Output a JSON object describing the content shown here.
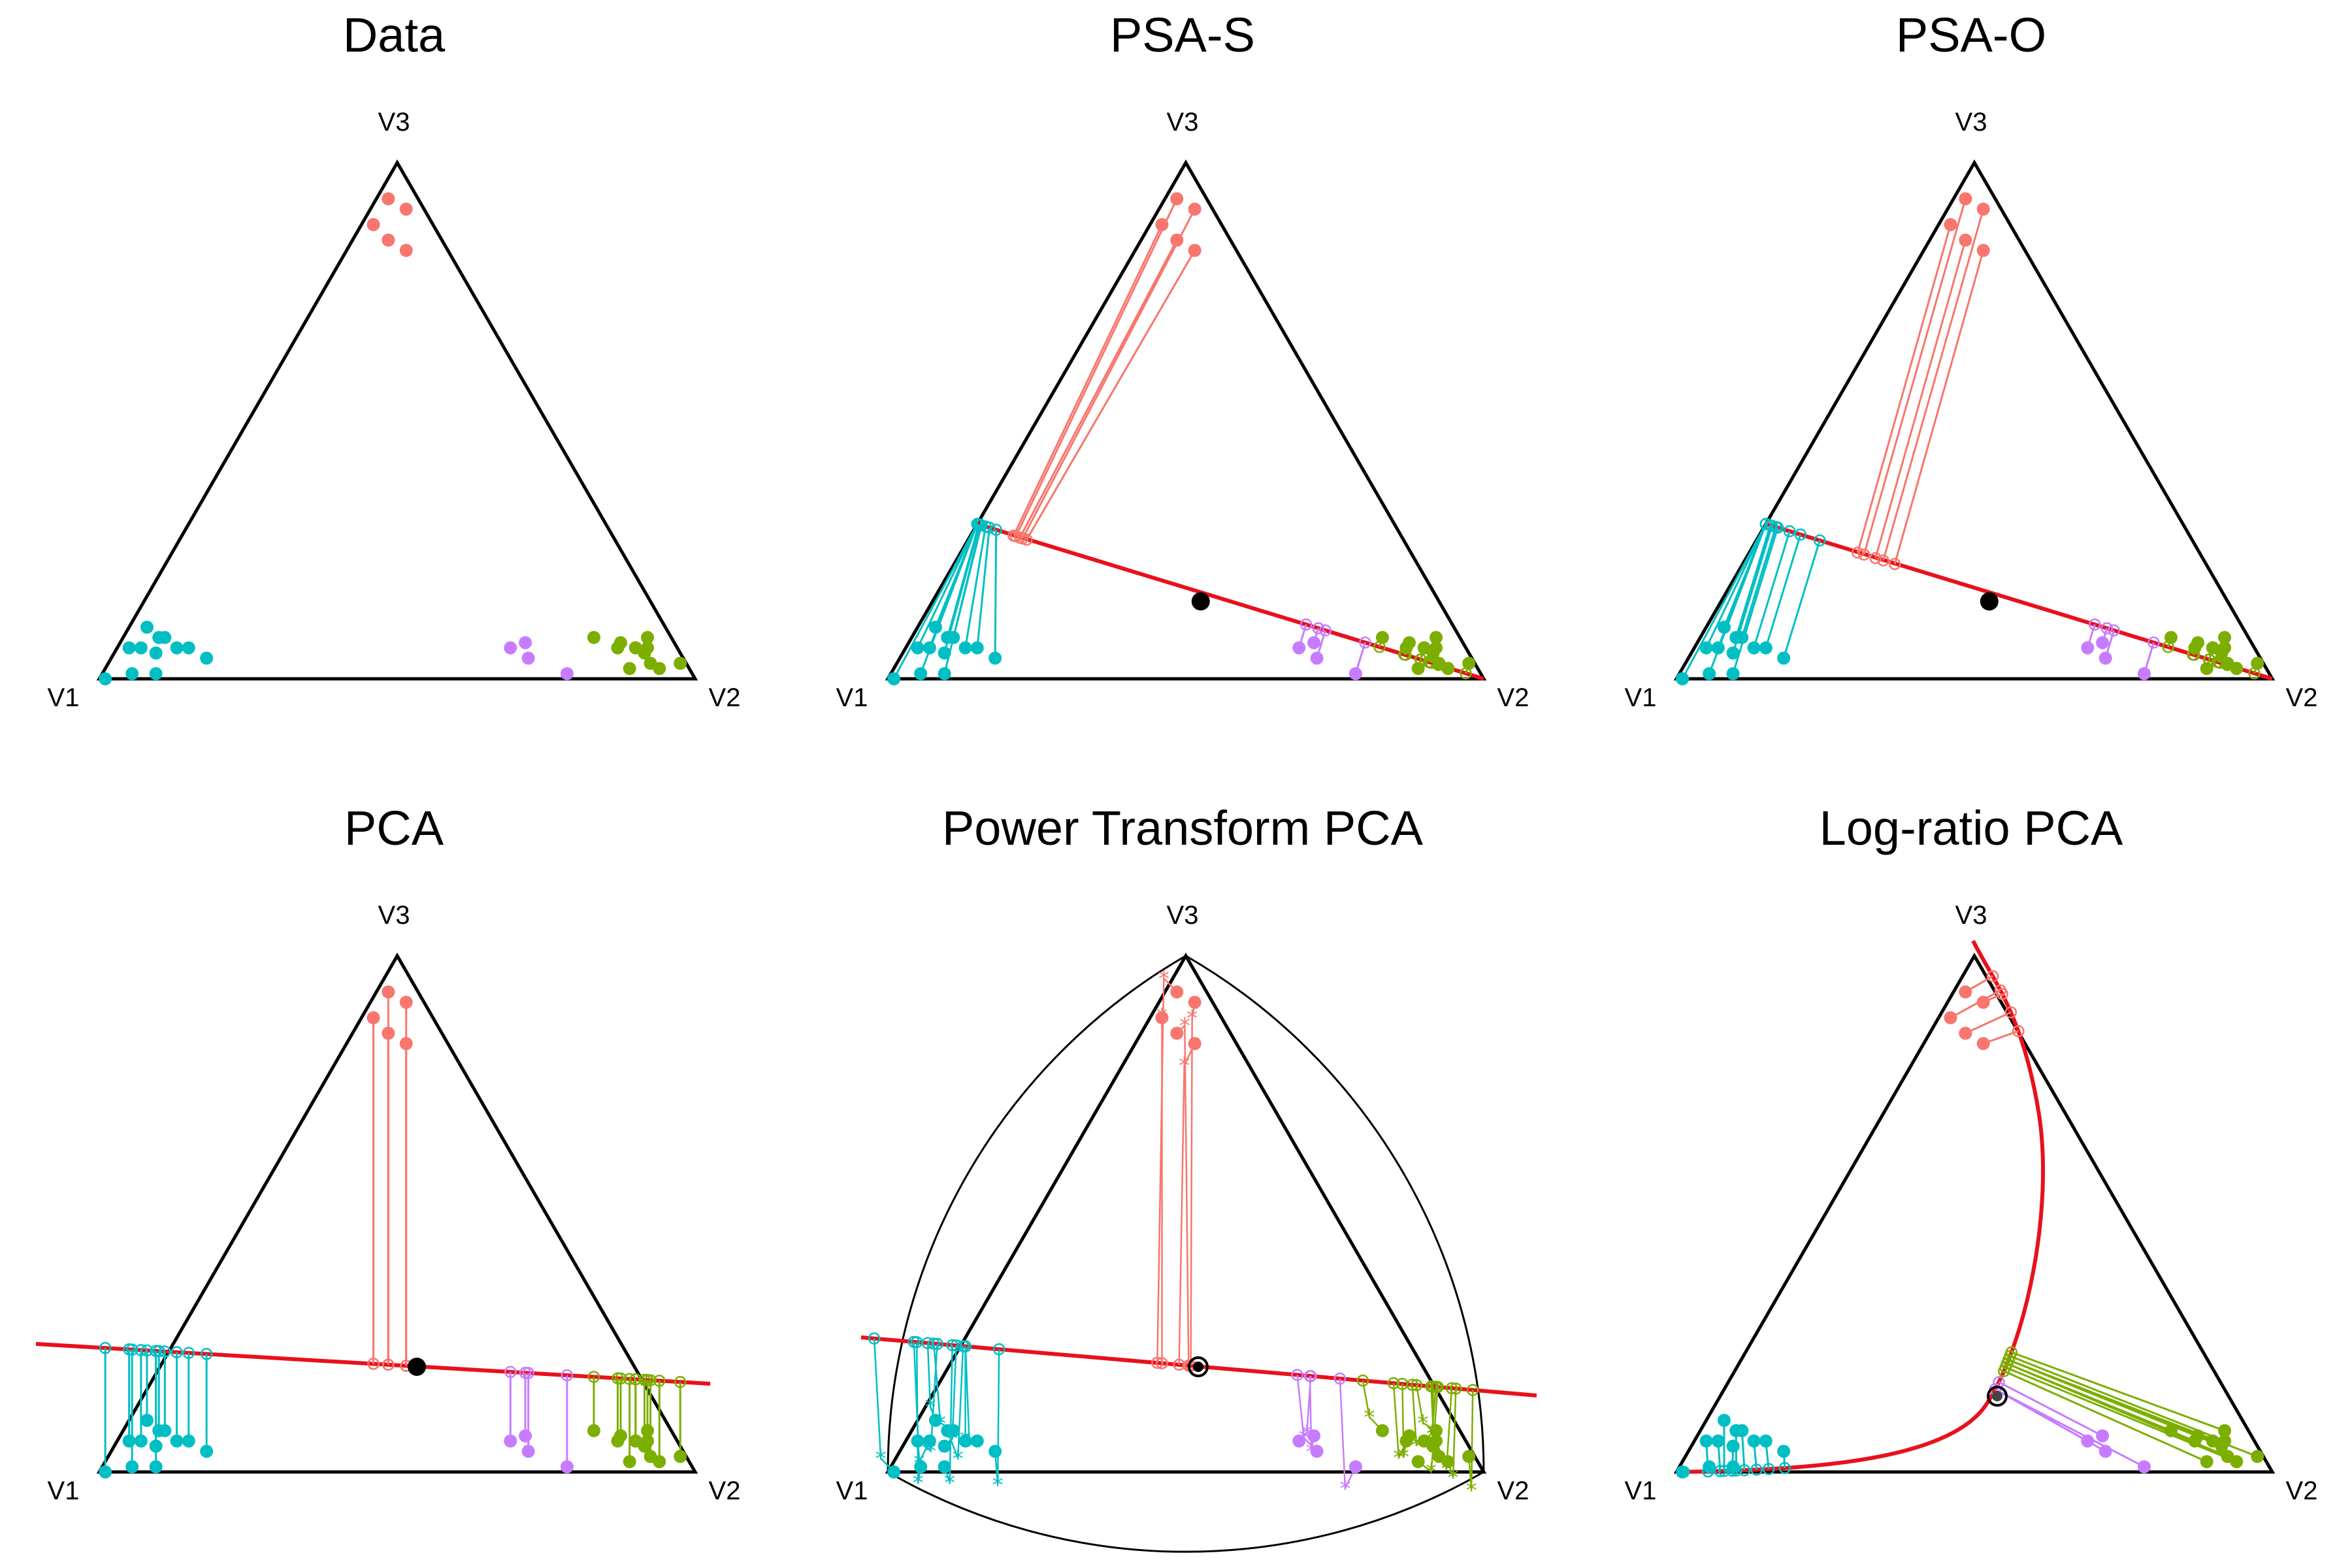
{
  "figure": {
    "colors": {
      "cluster_v3": "#F8766D",
      "cluster_v1": "#00BFC4",
      "cluster_v2a": "#C77CFF",
      "cluster_v2b": "#7CAE00",
      "principal_curve": "#E8111B",
      "center": "#000000",
      "frame": "#000000"
    },
    "vertex_labels": {
      "v1": "V1",
      "v2": "V2",
      "v3": "V3"
    }
  },
  "chart_data": [
    {
      "type": "scatter",
      "title": "Data",
      "coordinate_system": "ternary",
      "axes": [
        "V1",
        "V2",
        "V3"
      ],
      "series": [
        {
          "color": "#F8766D",
          "points": [
            [
              0.05,
              0.02,
              0.93
            ],
            [
              0.03,
              0.06,
              0.91
            ],
            [
              0.09,
              0.06,
              0.85
            ],
            [
              0.07,
              0.1,
              0.83
            ],
            [
              0.1,
              0.02,
              0.88
            ]
          ]
        },
        {
          "color": "#00BFC4",
          "points": [
            [
              0.99,
              0.01,
              0.0
            ],
            [
              0.94,
              0.05,
              0.01
            ],
            [
              0.88,
              0.07,
              0.05
            ],
            [
              0.9,
              0.04,
              0.06
            ],
            [
              0.84,
              0.1,
              0.06
            ],
            [
              0.86,
              0.06,
              0.08
            ],
            [
              0.82,
              0.12,
              0.06
            ],
            [
              0.8,
              0.16,
              0.04
            ],
            [
              0.92,
              0.02,
              0.06
            ],
            [
              0.87,
              0.03,
              0.1
            ],
            [
              0.9,
              0.09,
              0.01
            ],
            [
              0.85,
              0.07,
              0.08
            ]
          ]
        },
        {
          "color": "#C77CFF",
          "points": [
            [
              0.26,
              0.7,
              0.04
            ],
            [
              0.25,
              0.68,
              0.07
            ],
            [
              0.28,
              0.66,
              0.06
            ],
            [
              0.21,
              0.78,
              0.01
            ]
          ]
        },
        {
          "color": "#7CAE00",
          "points": [
            [
              0.13,
              0.79,
              0.08
            ],
            [
              0.1,
              0.84,
              0.06
            ],
            [
              0.07,
              0.87,
              0.06
            ],
            [
              0.09,
              0.84,
              0.07
            ],
            [
              0.06,
              0.89,
              0.05
            ],
            [
              0.05,
              0.89,
              0.06
            ],
            [
              0.07,
              0.87,
              0.06
            ],
            [
              0.01,
              0.96,
              0.03
            ],
            [
              0.1,
              0.88,
              0.02
            ],
            [
              0.06,
              0.91,
              0.03
            ],
            [
              0.05,
              0.93,
              0.02
            ],
            [
              0.04,
              0.88,
              0.08
            ]
          ]
        }
      ]
    },
    {
      "type": "scatter",
      "title": "PSA-S",
      "coordinate_system": "ternary",
      "axes": [
        "V1",
        "V2",
        "V3"
      ],
      "projection": "principal spherical axis (line through the barycenter)"
    },
    {
      "type": "scatter",
      "title": "PSA-O",
      "coordinate_system": "ternary",
      "axes": [
        "V1",
        "V2",
        "V3"
      ],
      "projection": "principal spherical axis (orthogonal projection)"
    },
    {
      "type": "scatter",
      "title": "PCA",
      "coordinate_system": "ternary",
      "axes": [
        "V1",
        "V2",
        "V3"
      ],
      "projection": "first principal component (straight line)"
    },
    {
      "type": "scatter",
      "title": "Power Transform PCA",
      "coordinate_system": "ternary",
      "axes": [
        "V1",
        "V2",
        "V3"
      ],
      "projection": "PCA after power transform (curved simplex boundary)"
    },
    {
      "type": "scatter",
      "title": "Log-ratio PCA",
      "coordinate_system": "ternary",
      "axes": [
        "V1",
        "V2",
        "V3"
      ],
      "projection": "log-ratio principal curve"
    }
  ]
}
